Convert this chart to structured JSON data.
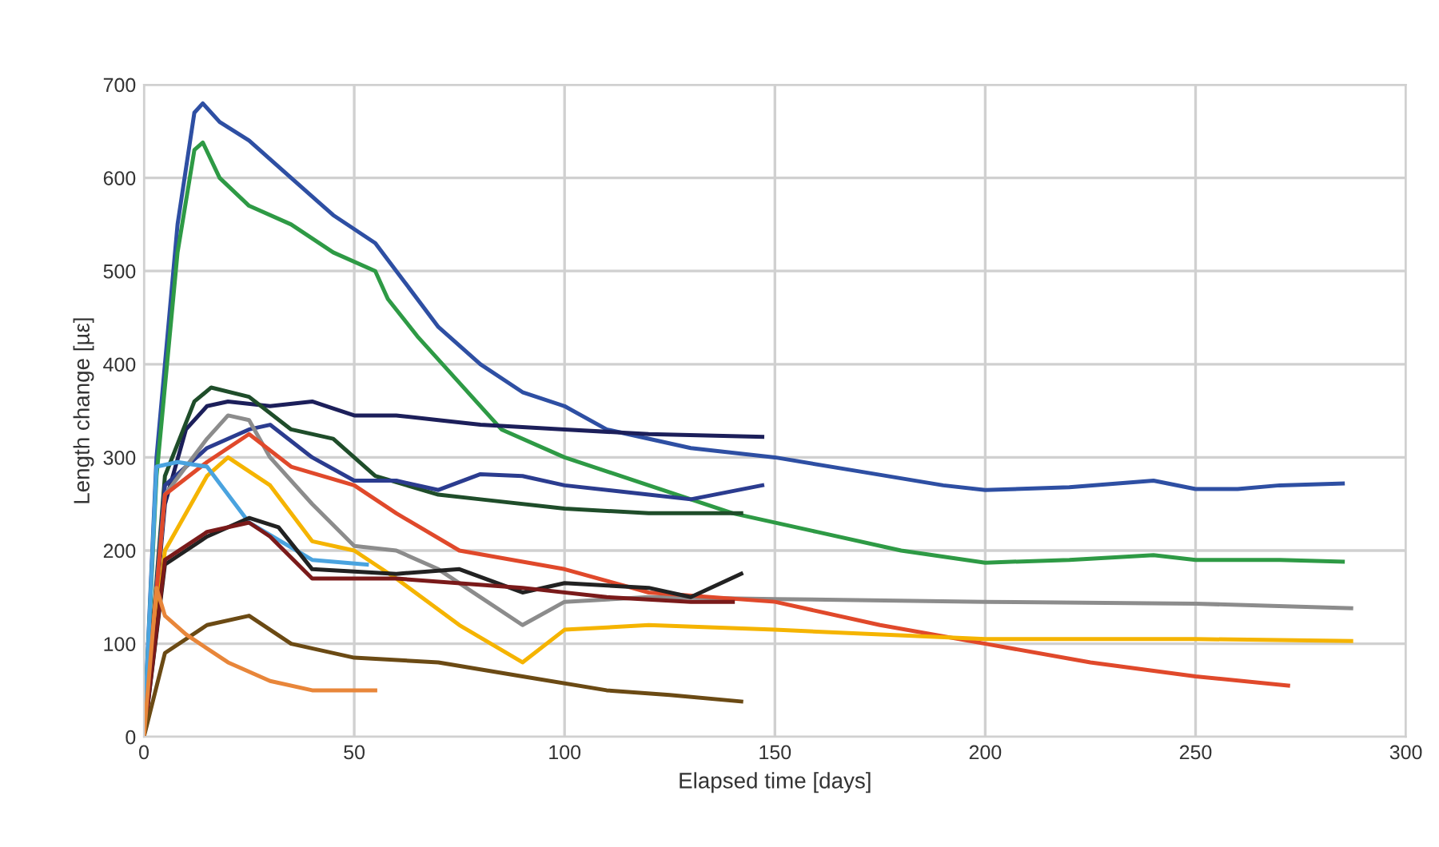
{
  "chart_data": {
    "type": "line",
    "xlabel": "Elapsed time [days]",
    "ylabel": "Length change [µε]",
    "xlim": [
      0,
      300
    ],
    "xticks": [
      0,
      50,
      100,
      150,
      200,
      250,
      300
    ],
    "ylim": [
      0,
      700
    ],
    "yticks": [
      0,
      100,
      200,
      300,
      400,
      500,
      600,
      700
    ],
    "grid": true,
    "legend": false,
    "marker": "none",
    "line_style": "solid",
    "series": [
      {
        "color": "#2e4fa3",
        "x": [
          0,
          3,
          8,
          12,
          14,
          18,
          25,
          35,
          45,
          55,
          60,
          70,
          80,
          90,
          100,
          110,
          130,
          150,
          170,
          190,
          200,
          220,
          240,
          250,
          260,
          270,
          285
        ],
        "values": [
          0,
          300,
          550,
          670,
          680,
          660,
          640,
          600,
          560,
          530,
          500,
          440,
          400,
          370,
          355,
          330,
          310,
          300,
          285,
          270,
          265,
          268,
          275,
          266,
          266,
          270,
          272
        ]
      },
      {
        "color": "#2e9a45",
        "x": [
          0,
          3,
          8,
          12,
          14,
          18,
          25,
          35,
          45,
          55,
          58,
          65,
          75,
          85,
          100,
          120,
          140,
          160,
          180,
          200,
          220,
          240,
          250,
          270,
          285
        ],
        "values": [
          0,
          280,
          520,
          630,
          638,
          600,
          570,
          550,
          520,
          500,
          470,
          430,
          380,
          330,
          300,
          270,
          240,
          220,
          200,
          187,
          190,
          195,
          190,
          190,
          188
        ]
      },
      {
        "color": "#1c1f5a",
        "x": [
          0,
          5,
          10,
          15,
          20,
          30,
          40,
          50,
          60,
          70,
          80,
          100,
          120,
          147
        ],
        "values": [
          0,
          250,
          330,
          355,
          360,
          355,
          360,
          345,
          345,
          340,
          335,
          330,
          325,
          322
        ]
      },
      {
        "color": "#1f4d2a",
        "x": [
          0,
          5,
          12,
          16,
          25,
          35,
          45,
          55,
          70,
          80,
          100,
          120,
          142
        ],
        "values": [
          0,
          280,
          360,
          375,
          365,
          330,
          320,
          280,
          260,
          255,
          245,
          240,
          240
        ]
      },
      {
        "color": "#2b3c8f",
        "x": [
          0,
          5,
          15,
          25,
          30,
          40,
          50,
          60,
          70,
          80,
          90,
          100,
          120,
          130,
          147
        ],
        "values": [
          0,
          270,
          310,
          330,
          335,
          300,
          275,
          275,
          265,
          282,
          280,
          270,
          260,
          255,
          270
        ]
      },
      {
        "color": "#8c8c8c",
        "x": [
          0,
          5,
          15,
          20,
          25,
          30,
          40,
          50,
          60,
          70,
          80,
          90,
          100,
          120,
          150,
          200,
          250,
          287
        ],
        "values": [
          0,
          260,
          320,
          345,
          340,
          300,
          250,
          205,
          200,
          180,
          150,
          120,
          145,
          150,
          148,
          145,
          143,
          138
        ]
      },
      {
        "color": "#e0492b",
        "x": [
          0,
          5,
          15,
          25,
          35,
          50,
          60,
          75,
          100,
          120,
          150,
          175,
          200,
          225,
          250,
          272
        ],
        "values": [
          0,
          260,
          295,
          325,
          290,
          270,
          240,
          200,
          180,
          155,
          145,
          120,
          100,
          80,
          65,
          55
        ]
      },
      {
        "color": "#f5b400",
        "x": [
          0,
          5,
          15,
          20,
          30,
          40,
          50,
          60,
          75,
          90,
          100,
          120,
          150,
          200,
          250,
          287
        ],
        "values": [
          0,
          200,
          280,
          300,
          270,
          210,
          200,
          170,
          120,
          80,
          115,
          120,
          115,
          105,
          105,
          103
        ]
      },
      {
        "color": "#4aa3df",
        "x": [
          0,
          3,
          8,
          15,
          25,
          40,
          53
        ],
        "values": [
          0,
          290,
          295,
          290,
          230,
          190,
          185
        ]
      },
      {
        "color": "#222222",
        "x": [
          0,
          5,
          15,
          25,
          32,
          40,
          60,
          75,
          90,
          100,
          120,
          130,
          142
        ],
        "values": [
          0,
          185,
          215,
          235,
          225,
          180,
          175,
          180,
          155,
          165,
          160,
          150,
          175
        ]
      },
      {
        "color": "#7a1a1a",
        "x": [
          0,
          5,
          15,
          25,
          30,
          40,
          60,
          90,
          110,
          130,
          140
        ],
        "values": [
          0,
          190,
          220,
          230,
          215,
          170,
          170,
          160,
          150,
          145,
          145
        ]
      },
      {
        "color": "#6b4a14",
        "x": [
          0,
          5,
          15,
          25,
          35,
          50,
          70,
          90,
          110,
          125,
          142
        ],
        "values": [
          0,
          90,
          120,
          130,
          100,
          85,
          80,
          65,
          50,
          45,
          38
        ]
      },
      {
        "color": "#e8863a",
        "x": [
          0,
          3,
          5,
          10,
          20,
          30,
          40,
          55
        ],
        "values": [
          0,
          160,
          130,
          110,
          80,
          60,
          50,
          50
        ]
      }
    ]
  }
}
